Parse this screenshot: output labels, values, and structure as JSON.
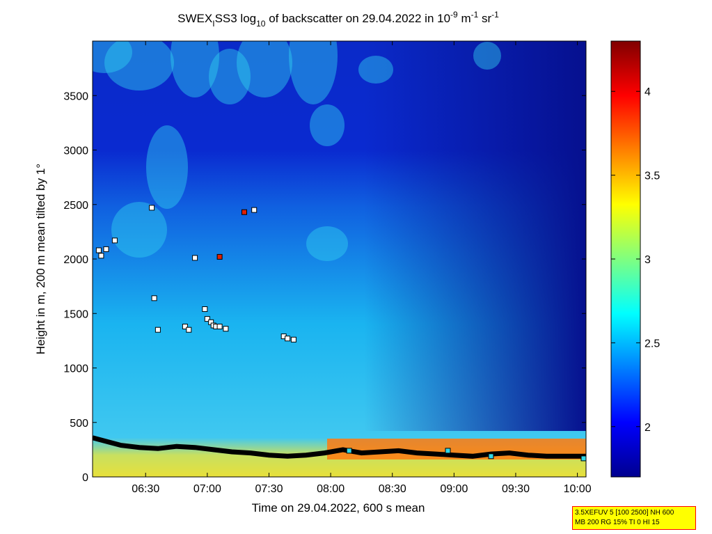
{
  "chart_data": {
    "type": "heatmap",
    "title": {
      "pre": "SWEX",
      "pre_sub": "I",
      "mid": "SS3 log",
      "mid_sub": "10",
      "post": " of backscatter on 29.04.2022 in 10",
      "exp1": "-9",
      "unit1": " m",
      "exp2": "-1",
      "unit2": " sr",
      "exp3": "-1"
    },
    "xlabel": "Time on 29.04.2022, 600 s mean",
    "ylabel": "Height in m, 200 m mean tilted by 1°",
    "x_ticks": [
      "06:30",
      "07:00",
      "07:30",
      "08:00",
      "08:30",
      "09:00",
      "09:30",
      "10:00"
    ],
    "x_tick_hours": [
      6.5,
      7.0,
      7.5,
      8.0,
      8.5,
      9.0,
      9.5,
      10.0
    ],
    "xlim_hours": [
      6.07,
      10.07
    ],
    "y_ticks": [
      0,
      500,
      1000,
      1500,
      2000,
      2500,
      3000,
      3500
    ],
    "ylim": [
      0,
      4000
    ],
    "colorbar": {
      "ticks": [
        "2",
        "2.5",
        "3",
        "3.5",
        "4"
      ],
      "tick_values": [
        2,
        2.5,
        3,
        3.5,
        4
      ],
      "range": [
        1.7,
        4.3
      ]
    },
    "series": [
      {
        "marker": "black-line",
        "x": [
          6.07,
          6.2,
          6.3,
          6.45,
          6.6,
          6.75,
          6.9,
          7.05,
          7.2,
          7.35,
          7.5,
          7.65,
          7.8,
          7.95,
          8.1,
          8.25,
          8.4,
          8.55,
          8.7,
          8.85,
          9.0,
          9.15,
          9.3,
          9.45,
          9.6,
          9.75,
          9.9,
          10.07
        ],
        "y": [
          360,
          320,
          290,
          270,
          260,
          280,
          270,
          250,
          230,
          220,
          200,
          190,
          200,
          220,
          250,
          220,
          230,
          240,
          220,
          210,
          200,
          190,
          210,
          220,
          200,
          190,
          190,
          190
        ]
      },
      {
        "marker": "white-square",
        "x": [
          6.12,
          6.14,
          6.18,
          6.25,
          6.55,
          6.57,
          6.6,
          6.82,
          6.85,
          6.9,
          6.98,
          7.0,
          7.03,
          7.05,
          7.07,
          7.1,
          7.15,
          7.38,
          7.62,
          7.65,
          7.7
        ],
        "y": [
          2080,
          2030,
          2090,
          2170,
          2470,
          1640,
          1350,
          1380,
          1350,
          2010,
          1540,
          1450,
          1420,
          1390,
          1380,
          1380,
          1360,
          2450,
          1290,
          1270,
          1260
        ]
      },
      {
        "marker": "red-square",
        "x": [
          7.1,
          7.3
        ],
        "y": [
          2020,
          2430
        ]
      },
      {
        "marker": "cyan-square",
        "x": [
          8.15,
          8.95,
          9.3,
          10.05
        ],
        "y": [
          240,
          240,
          190,
          170
        ]
      }
    ],
    "grid": false,
    "colormap": "jet"
  },
  "info_box": {
    "line1": "3.5XEFUV 5 [100 2500] NH 600",
    "line2": "MB 200 RG 15% TI 0 HI 15"
  },
  "colors": {
    "low": "#00008f",
    "mid": "#00c8ff",
    "high": "#ffd700",
    "top": "#800000"
  }
}
